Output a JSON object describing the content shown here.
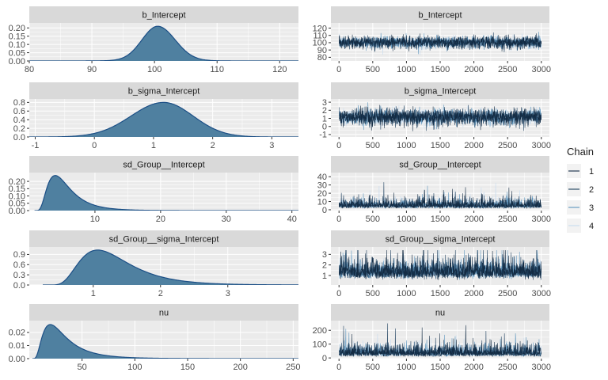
{
  "legend": {
    "title": "Chain",
    "entries": [
      "1",
      "2",
      "3",
      "4"
    ],
    "colors": [
      "#132b43",
      "#1d3f5e",
      "#5d95bd",
      "#c6dbef"
    ]
  },
  "style": {
    "panel_bg": "#ebebeb",
    "strip_bg": "#d9d9d9",
    "grid": "#ffffff",
    "density_fill": "#4f80a0",
    "density_line": "#1c4f86"
  },
  "chart_data": [
    {
      "type": "area",
      "kind": "density",
      "title": "b_Intercept",
      "x_range": [
        80,
        123
      ],
      "y_range": [
        0,
        0.23
      ],
      "x_ticks": [
        80,
        90,
        100,
        110,
        120
      ],
      "y_ticks": [
        0.0,
        0.05,
        0.1,
        0.15,
        0.2
      ],
      "y_tick_labels": [
        "0.00",
        "0.05",
        "0.10",
        "0.15",
        "0.20"
      ],
      "curve": {
        "mode": 100.5,
        "peak": 0.21,
        "sd_left": 2.5,
        "sd_right": 2.8,
        "tail": 0.012,
        "tail_sd": 6
      }
    },
    {
      "type": "line",
      "kind": "trace",
      "title": "b_Intercept",
      "x_range": [
        -120,
        3120
      ],
      "y_range": [
        75,
        127
      ],
      "x_ticks": [
        0,
        500,
        1000,
        1500,
        2000,
        2500,
        3000
      ],
      "y_ticks": [
        80,
        90,
        100,
        110,
        120
      ],
      "y_tick_labels": [
        "80",
        "90",
        "100",
        "110",
        "120"
      ],
      "chains": 4,
      "iterations": 3000,
      "sim": {
        "center": 100.5,
        "spread": 4.2,
        "min": 80,
        "max": 124,
        "dist": "normal"
      }
    },
    {
      "type": "area",
      "kind": "density",
      "title": "b_sigma_Intercept",
      "x_range": [
        -1.1,
        3.45
      ],
      "y_range": [
        0,
        0.88
      ],
      "x_ticks": [
        -1,
        0,
        1,
        2,
        3
      ],
      "y_ticks": [
        0.0,
        0.2,
        0.4,
        0.6,
        0.8
      ],
      "y_tick_labels": [
        "0.0",
        "0.2",
        "0.4",
        "0.6",
        "0.8"
      ],
      "curve": {
        "mode": 1.17,
        "peak": 0.8,
        "sd_left": 0.55,
        "sd_right": 0.5
      }
    },
    {
      "type": "line",
      "kind": "trace",
      "title": "b_sigma_Intercept",
      "x_range": [
        -120,
        3120
      ],
      "y_range": [
        -1.3,
        3.4
      ],
      "x_ticks": [
        0,
        500,
        1000,
        1500,
        2000,
        2500,
        3000
      ],
      "y_ticks": [
        -1,
        0,
        1,
        2,
        3
      ],
      "y_tick_labels": [
        "-1",
        "0",
        "1",
        "2",
        "3"
      ],
      "chains": 4,
      "iterations": 3000,
      "sim": {
        "center": 1.17,
        "spread": 0.5,
        "min": -0.9,
        "max": 3.2,
        "dist": "normal"
      }
    },
    {
      "type": "area",
      "kind": "density",
      "title": "sd_Group__Intercept",
      "x_range": [
        0,
        41
      ],
      "y_range": [
        0,
        0.26
      ],
      "x_ticks": [
        10,
        20,
        30,
        40
      ],
      "y_ticks": [
        0.0,
        0.05,
        0.1,
        0.15,
        0.2
      ],
      "y_tick_labels": [
        "0.00",
        "0.05",
        "0.10",
        "0.15",
        "0.20"
      ],
      "curve": {
        "start": 0.8,
        "logmean": 1.45,
        "logsd": 0.55,
        "peak": 0.24
      }
    },
    {
      "type": "line",
      "kind": "trace",
      "title": "sd_Group__Intercept",
      "x_range": [
        -120,
        3120
      ],
      "y_range": [
        -1,
        45
      ],
      "x_ticks": [
        0,
        500,
        1000,
        1500,
        2000,
        2500,
        3000
      ],
      "y_ticks": [
        0,
        10,
        20,
        30,
        40
      ],
      "y_tick_labels": [
        "0",
        "10",
        "20",
        "30",
        "40"
      ],
      "chains": 4,
      "iterations": 3000,
      "sim": {
        "logmean": 1.5,
        "logsd": 0.6,
        "floor": 0.8,
        "min": 0.5,
        "max": 40,
        "dist": "lognormal"
      }
    },
    {
      "type": "area",
      "kind": "density",
      "title": "sd_Group__sigma_Intercept",
      "x_range": [
        0.05,
        4.05
      ],
      "y_range": [
        0,
        1.12
      ],
      "x_ticks": [
        1,
        2,
        3
      ],
      "y_ticks": [
        0.0,
        0.3,
        0.6,
        0.9
      ],
      "y_tick_labels": [
        "0.0",
        "0.3",
        "0.6",
        "0.9"
      ],
      "curve": {
        "start": 0.25,
        "logmean": 0.0,
        "logsd": 0.45,
        "peak": 1.03
      }
    },
    {
      "type": "line",
      "kind": "trace",
      "title": "sd_Group__sigma_Intercept",
      "x_range": [
        -120,
        3120
      ],
      "y_range": [
        0.1,
        3.7
      ],
      "x_ticks": [
        0,
        500,
        1000,
        1500,
        2000,
        2500,
        3000
      ],
      "y_ticks": [
        1,
        2,
        3
      ],
      "y_tick_labels": [
        "1",
        "2",
        "3"
      ],
      "chains": 4,
      "iterations": 3000,
      "sim": {
        "logmean": 0.05,
        "logsd": 0.42,
        "floor": 0.3,
        "min": 0.5,
        "max": 3.4,
        "dist": "lognormal"
      }
    },
    {
      "type": "area",
      "kind": "density",
      "title": "nu",
      "x_range": [
        0,
        255
      ],
      "y_range": [
        0,
        0.029
      ],
      "x_ticks": [
        50,
        100,
        150,
        200,
        250
      ],
      "y_ticks": [
        0.0,
        0.01,
        0.02
      ],
      "y_tick_labels": [
        "0.00",
        "0.01",
        "0.02"
      ],
      "curve": {
        "start": 3,
        "logmean": 3.25,
        "logsd": 0.65,
        "peak": 0.026
      }
    },
    {
      "type": "line",
      "kind": "trace",
      "title": "nu",
      "x_range": [
        -120,
        3120
      ],
      "y_range": [
        -5,
        270
      ],
      "x_ticks": [
        0,
        500,
        1000,
        1500,
        2000,
        2500,
        3000
      ],
      "y_ticks": [
        0,
        100,
        200
      ],
      "y_tick_labels": [
        "0",
        "100",
        "200"
      ],
      "chains": 4,
      "iterations": 3000,
      "sim": {
        "logmean": 3.5,
        "logsd": 0.6,
        "floor": 3,
        "min": 3,
        "max": 250,
        "dist": "lognormal"
      }
    }
  ]
}
